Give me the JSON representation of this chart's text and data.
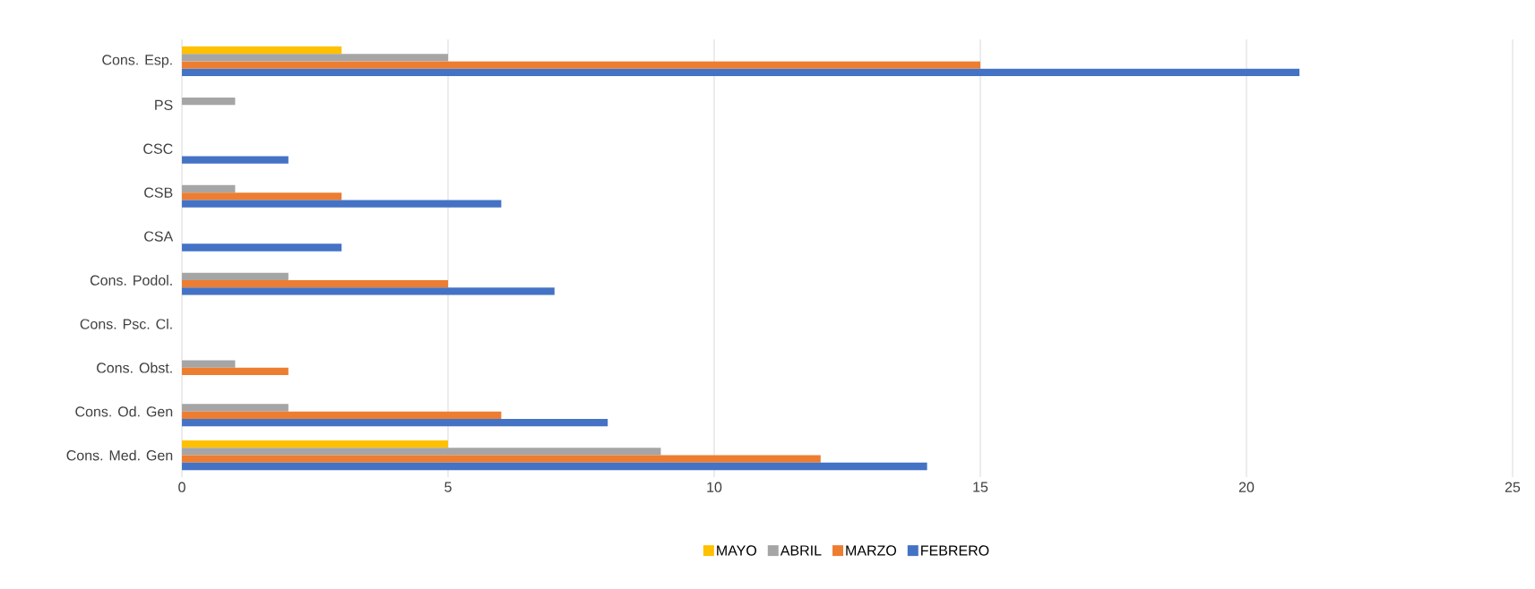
{
  "chart_data": {
    "type": "bar",
    "orientation": "horizontal",
    "categories": [
      "Cons. Esp.",
      "PS",
      "CSC",
      "CSB",
      "CSA",
      "Cons. Podol.",
      "Cons. Psc. Cl.",
      "Cons. Obst.",
      "Cons. Od. Gen",
      "Cons. Med. Gen"
    ],
    "series": [
      {
        "name": "MAYO",
        "color": "#ffc000",
        "values": [
          3,
          0,
          0,
          0,
          0,
          0,
          0,
          0,
          0,
          5
        ]
      },
      {
        "name": "ABRIL",
        "color": "#a5a5a5",
        "values": [
          5,
          1,
          0,
          1,
          0,
          2,
          0,
          1,
          2,
          9
        ]
      },
      {
        "name": "MARZO",
        "color": "#ed7d31",
        "values": [
          15,
          0,
          0,
          3,
          0,
          5,
          0,
          2,
          6,
          12
        ]
      },
      {
        "name": "FEBRERO",
        "color": "#4472c4",
        "values": [
          21,
          0,
          2,
          6,
          3,
          7,
          0,
          0,
          8,
          14
        ]
      }
    ],
    "xlim": [
      0,
      25
    ],
    "xticks": [
      0,
      5,
      10,
      15,
      20,
      25
    ],
    "grid": "x",
    "legend": "bottom"
  }
}
